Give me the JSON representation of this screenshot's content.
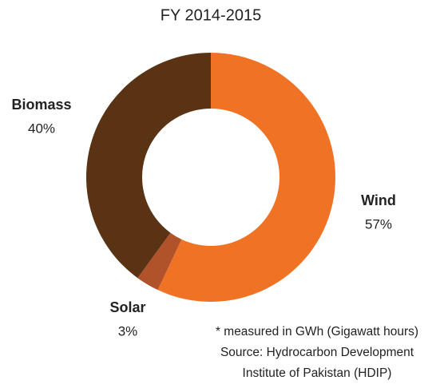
{
  "chart_data": {
    "type": "donut",
    "title": "FY 2014-2015",
    "categories": [
      "Wind",
      "Solar",
      "Biomass"
    ],
    "values": [
      57,
      3,
      40
    ],
    "value_labels": [
      "57%",
      "3%",
      "40%"
    ],
    "colors": [
      "#f07224",
      "#b0522a",
      "#5a3214"
    ],
    "notes": [
      "* measured in GWh (Gigawatt hours)",
      "Source: Hydrocarbon Development",
      "Institute of Pakistan (HDIP)"
    ]
  }
}
